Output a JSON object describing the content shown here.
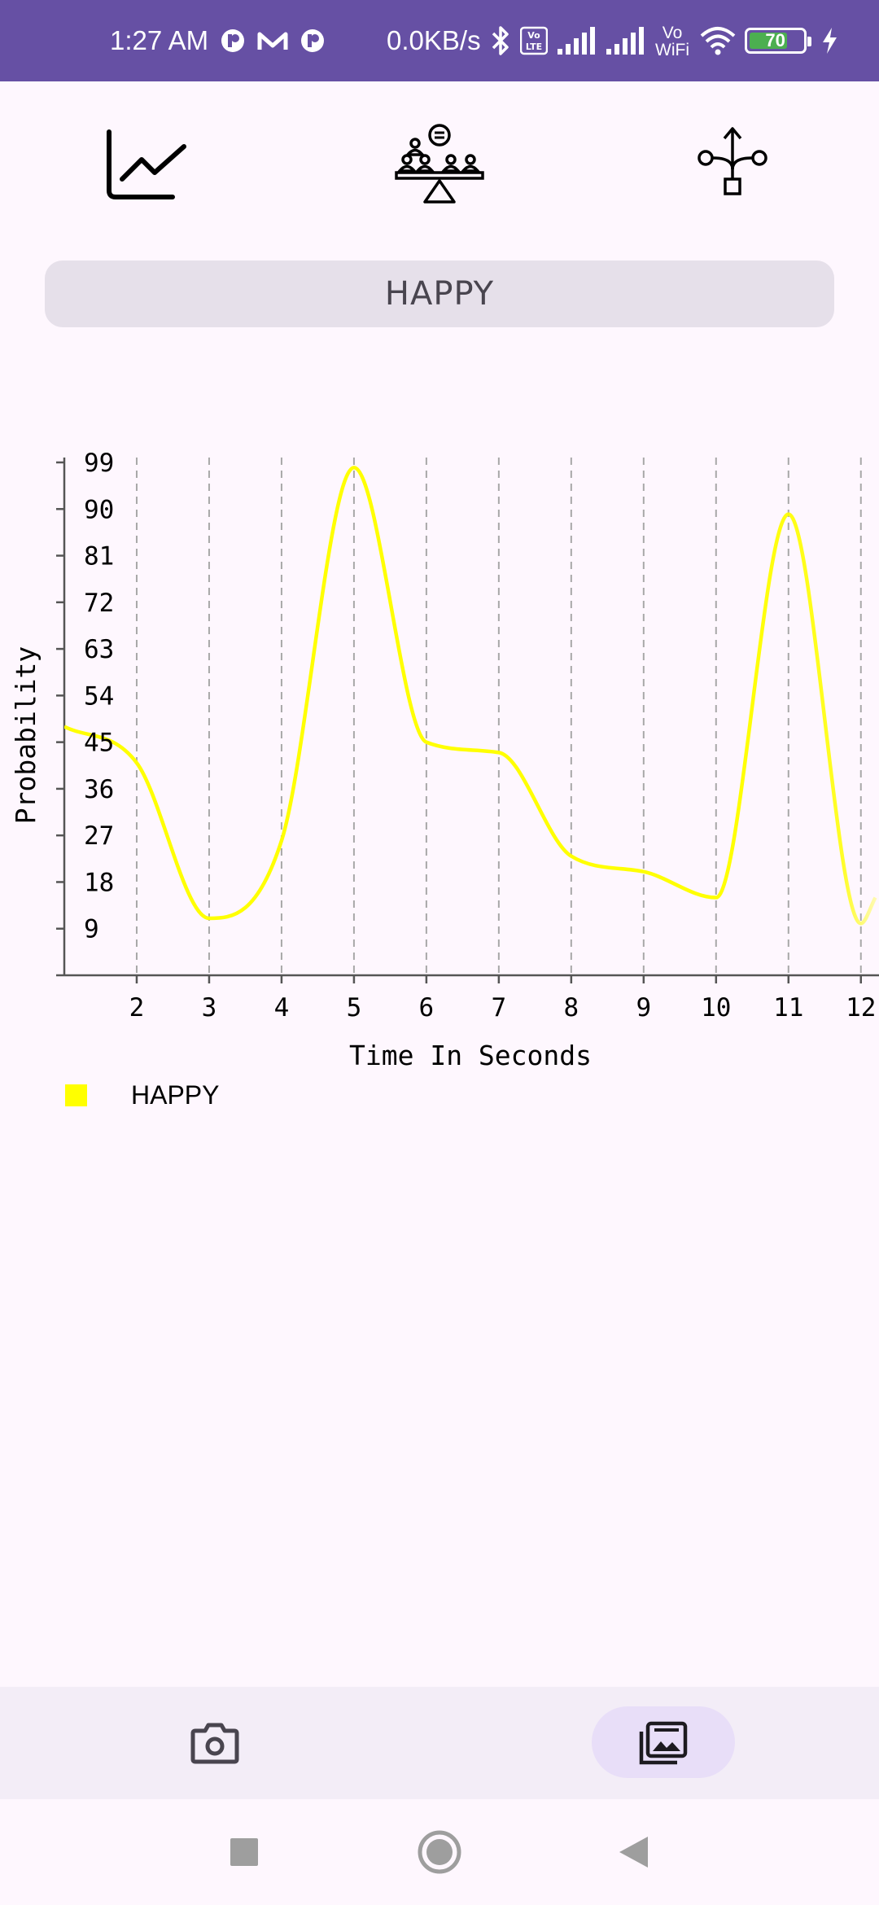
{
  "status_bar": {
    "time": "1:27 AM",
    "speed": "0.0KB/s",
    "volte_text": "Vo\nLTE",
    "vowifi_top": "Vo",
    "vowifi_bottom": "WiFi",
    "battery_level": "70",
    "icons": [
      "notification-app-icon",
      "gmail-icon",
      "notification-app-icon",
      "bluetooth-icon",
      "volte-icon",
      "signal-icon",
      "signal-icon",
      "vowifi-icon",
      "wifi-icon",
      "battery-icon",
      "charging-icon"
    ]
  },
  "toolbar": {
    "icons": [
      "line-chart-icon",
      "group-balance-icon",
      "tree-split-icon"
    ]
  },
  "emotion": {
    "label": "HAPPY"
  },
  "chart_data": {
    "type": "line",
    "x": [
      1,
      2,
      3,
      4,
      5,
      6,
      7,
      8,
      9,
      10,
      11,
      12,
      12.2
    ],
    "series": [
      {
        "name": "HAPPY",
        "color": "#ffff00",
        "values": [
          48,
          41,
          11,
          26,
          98,
          45,
          43,
          23,
          20,
          15,
          89,
          10,
          15
        ]
      }
    ],
    "xticks": [
      "2",
      "3",
      "4",
      "5",
      "6",
      "7",
      "8",
      "9",
      "10",
      "11",
      "12"
    ],
    "yticks": [
      "9",
      "18",
      "27",
      "36",
      "45",
      "54",
      "63",
      "72",
      "81",
      "90",
      "99"
    ],
    "xlabel": "Time In Seconds",
    "ylabel": "Probability",
    "xlim": [
      1,
      12.25
    ],
    "ylim": [
      0,
      99
    ],
    "grid": "vertical dashed",
    "legend": "bottom-left"
  },
  "bottom_nav": {
    "items": [
      {
        "icon": "camera-icon",
        "selected": false
      },
      {
        "icon": "gallery-icon",
        "selected": true
      }
    ]
  },
  "system_nav": {
    "buttons": [
      "recents-square-icon",
      "home-circle-icon",
      "back-triangle-icon"
    ]
  }
}
